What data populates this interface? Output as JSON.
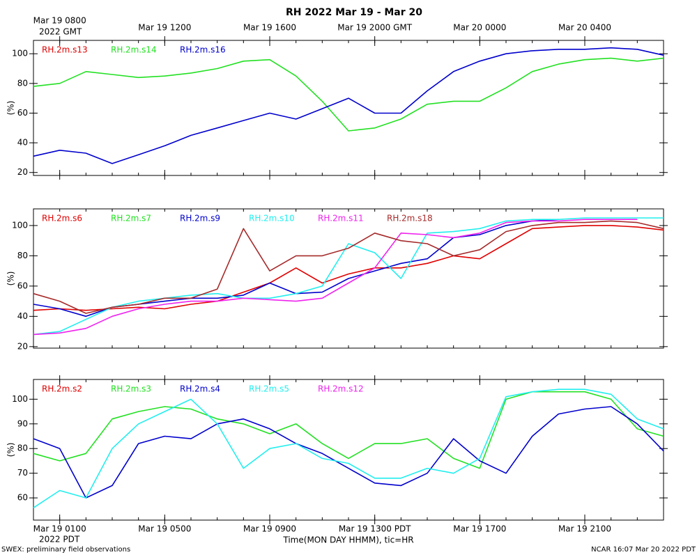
{
  "title": "RH 2022 Mar 19 - Mar 20",
  "footer_left": "SWEX: preliminary field observations",
  "footer_right": "NCAR 16:07 Mar 20 2022 PDT",
  "chart_data": [
    {
      "type": "line",
      "ylabel": "(%)",
      "xaxis_note": "2022 GMT",
      "x": [
        7,
        8,
        9,
        10,
        11,
        12,
        13,
        14,
        15,
        16,
        17,
        18,
        19,
        20,
        21,
        22,
        23,
        24,
        25,
        26,
        27,
        28,
        29,
        30,
        31
      ],
      "xlim": [
        7,
        31
      ],
      "xticks": [
        {
          "value": 8,
          "label": "Mar 19 0800"
        },
        {
          "value": 12,
          "label": "Mar 19 1200"
        },
        {
          "value": 16,
          "label": "Mar 19 1600"
        },
        {
          "value": 20,
          "label": "Mar 19 2000 GMT"
        },
        {
          "value": 24,
          "label": "Mar 20 0000"
        },
        {
          "value": 28,
          "label": "Mar 20 0400"
        }
      ],
      "xminorticks": [
        7,
        8,
        9,
        10,
        11,
        12,
        13,
        14,
        15,
        16,
        17,
        18,
        19,
        20,
        21,
        22,
        23,
        24,
        25,
        26,
        27,
        28,
        29,
        30,
        31
      ],
      "ylim": [
        18,
        109
      ],
      "yticks": [
        20,
        40,
        60,
        80,
        100
      ],
      "series": [
        {
          "name": "RH.2m.s13",
          "color": "#e00000",
          "values": [
            null,
            null,
            null,
            null,
            null,
            null,
            null,
            null,
            null,
            null,
            null,
            null,
            null,
            null,
            null,
            null,
            null,
            null,
            null,
            null,
            null,
            null,
            null,
            null,
            null
          ]
        },
        {
          "name": "RH.2m.s14",
          "color": "#22e022",
          "values": [
            78,
            80,
            88,
            86,
            84,
            85,
            87,
            90,
            95,
            96,
            85,
            68,
            48,
            50,
            56,
            66,
            68,
            68,
            77,
            88,
            93,
            96,
            97,
            95,
            97
          ]
        },
        {
          "name": "RH.2m.s16",
          "color": "#0000cc",
          "values": [
            31,
            35,
            33,
            26,
            32,
            38,
            45,
            50,
            55,
            60,
            56,
            63,
            70,
            60,
            60,
            75,
            88,
            95,
            100,
            102,
            103,
            103,
            104,
            103,
            99
          ]
        }
      ]
    },
    {
      "type": "line",
      "ylabel": "(%)",
      "x": [
        7,
        8,
        9,
        10,
        11,
        12,
        13,
        14,
        15,
        16,
        17,
        18,
        19,
        20,
        21,
        22,
        23,
        24,
        25,
        26,
        27,
        28,
        29,
        30,
        31
      ],
      "xlim": [
        7,
        31
      ],
      "xminorticks": [
        7,
        8,
        9,
        10,
        11,
        12,
        13,
        14,
        15,
        16,
        17,
        18,
        19,
        20,
        21,
        22,
        23,
        24,
        25,
        26,
        27,
        28,
        29,
        30,
        31
      ],
      "ylim": [
        19,
        111
      ],
      "yticks": [
        20,
        40,
        60,
        80,
        100
      ],
      "series": [
        {
          "name": "RH.2m.s6",
          "color": "#e00000",
          "values": [
            44,
            45,
            44,
            45,
            46,
            45,
            48,
            50,
            56,
            62,
            72,
            62,
            68,
            72,
            72,
            75,
            80,
            78,
            88,
            98,
            99,
            100,
            100,
            99,
            97
          ]
        },
        {
          "name": "RH.2m.s7",
          "color": "#22e022",
          "values": [
            null,
            null,
            null,
            null,
            null,
            null,
            null,
            null,
            null,
            null,
            null,
            null,
            null,
            null,
            null,
            null,
            null,
            null,
            null,
            null,
            null,
            null,
            null,
            null,
            null
          ]
        },
        {
          "name": "RH.2m.s9",
          "color": "#0000cc",
          "values": [
            48,
            45,
            40,
            46,
            48,
            50,
            52,
            52,
            54,
            62,
            55,
            56,
            65,
            70,
            75,
            78,
            92,
            94,
            100,
            103,
            104,
            null,
            null,
            null,
            null
          ]
        },
        {
          "name": "RH.2m.s10",
          "color": "#22eeee",
          "values": [
            28,
            30,
            38,
            46,
            50,
            52,
            54,
            55,
            52,
            52,
            55,
            60,
            88,
            82,
            65,
            95,
            96,
            98,
            103,
            104,
            104,
            105,
            105,
            105,
            105
          ]
        },
        {
          "name": "RH.2m.s11",
          "color": "#ee22ee",
          "values": [
            28,
            29,
            32,
            40,
            45,
            48,
            50,
            50,
            52,
            51,
            50,
            52,
            62,
            72,
            95,
            94,
            92,
            95,
            102,
            103,
            103,
            104,
            104,
            104,
            null
          ]
        },
        {
          "name": "RH.2m.s18",
          "color": "#a52a2a",
          "values": [
            55,
            50,
            42,
            46,
            48,
            52,
            52,
            58,
            98,
            70,
            80,
            80,
            85,
            95,
            90,
            88,
            80,
            84,
            96,
            100,
            102,
            102,
            103,
            102,
            98
          ]
        }
      ]
    },
    {
      "type": "line",
      "ylabel": "(%)",
      "xaxis_note": "2022 PDT",
      "xlabel": "Time(MON DAY HHMM), tic=HR",
      "x": [
        7,
        8,
        9,
        10,
        11,
        12,
        13,
        14,
        15,
        16,
        17,
        18,
        19,
        20,
        21,
        22,
        23,
        24,
        25,
        26,
        27,
        28,
        29,
        30,
        31
      ],
      "xlim": [
        7,
        31
      ],
      "xticks": [
        {
          "value": 8,
          "label": "Mar 19 0100"
        },
        {
          "value": 12,
          "label": "Mar 19 0500"
        },
        {
          "value": 16,
          "label": "Mar 19 0900"
        },
        {
          "value": 20,
          "label": "Mar 19 1300 PDT"
        },
        {
          "value": 24,
          "label": "Mar 19 1700"
        },
        {
          "value": 28,
          "label": "Mar 19 2100"
        }
      ],
      "xminorticks": [
        7,
        8,
        9,
        10,
        11,
        12,
        13,
        14,
        15,
        16,
        17,
        18,
        19,
        20,
        21,
        22,
        23,
        24,
        25,
        26,
        27,
        28,
        29,
        30,
        31
      ],
      "ylim": [
        51,
        108
      ],
      "yticks": [
        60,
        70,
        80,
        90,
        100
      ],
      "series": [
        {
          "name": "RH.2m.s2",
          "color": "#e00000",
          "values": [
            null,
            null,
            null,
            null,
            null,
            null,
            null,
            null,
            null,
            null,
            null,
            null,
            null,
            null,
            null,
            null,
            null,
            null,
            null,
            null,
            null,
            null,
            null,
            null,
            null
          ]
        },
        {
          "name": "RH.2m.s3",
          "color": "#22e022",
          "values": [
            78,
            75,
            78,
            92,
            95,
            97,
            96,
            92,
            90,
            86,
            90,
            82,
            76,
            82,
            82,
            84,
            76,
            72,
            100,
            103,
            103,
            103,
            100,
            88,
            85
          ]
        },
        {
          "name": "RH.2m.s4",
          "color": "#0000cc",
          "values": [
            84,
            80,
            60,
            65,
            82,
            85,
            84,
            90,
            92,
            88,
            82,
            78,
            72,
            66,
            65,
            70,
            84,
            75,
            70,
            85,
            94,
            96,
            97,
            90,
            79
          ]
        },
        {
          "name": "RH.2m.s5",
          "color": "#22eeee",
          "values": [
            56,
            63,
            60,
            80,
            90,
            95,
            100,
            90,
            72,
            80,
            82,
            76,
            74,
            68,
            68,
            72,
            70,
            76,
            101,
            103,
            104,
            104,
            102,
            92,
            88
          ]
        },
        {
          "name": "RH.2m.s12",
          "color": "#ee22ee",
          "values": [
            null,
            null,
            null,
            null,
            null,
            null,
            null,
            null,
            null,
            null,
            null,
            null,
            null,
            null,
            null,
            null,
            null,
            null,
            null,
            null,
            null,
            null,
            null,
            null,
            null
          ]
        }
      ]
    }
  ]
}
